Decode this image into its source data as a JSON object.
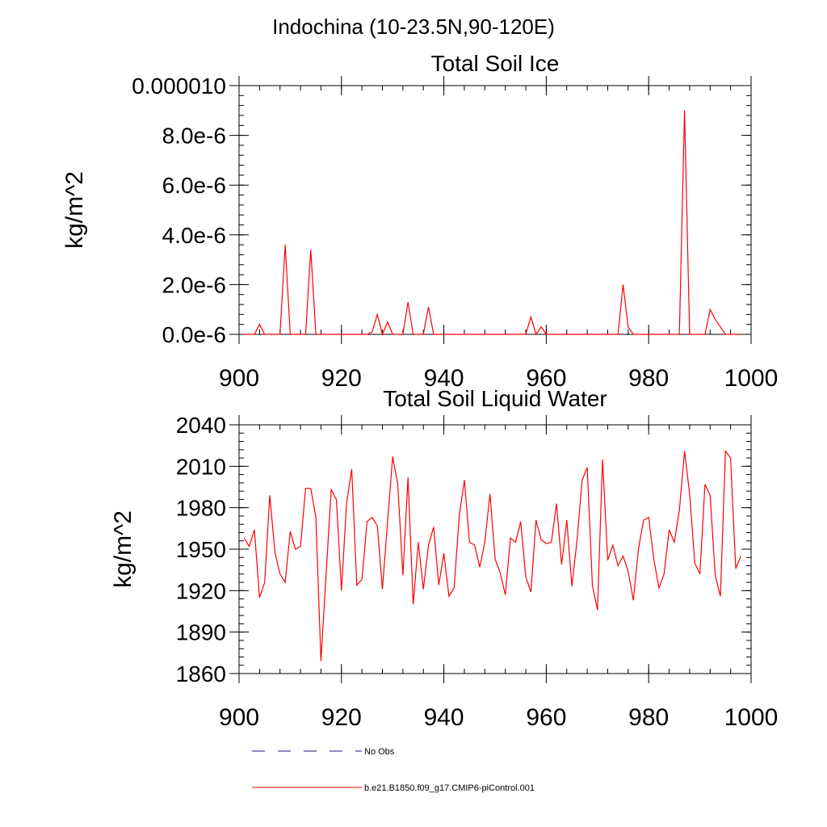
{
  "header": {
    "title": "Indochina (10-23.5N,90-120E)"
  },
  "legend": {
    "items": [
      {
        "label": "No Obs",
        "style": "dashed",
        "color": "#1a1a80"
      },
      {
        "label": "b.e21.B1850.f09_g17.CMIP6-piControl.001",
        "style": "solid",
        "color": "#ff0000"
      }
    ]
  },
  "chart_data": [
    {
      "type": "line",
      "title": "Total Soil Ice",
      "ylabel": "kg/m^2",
      "xlabel": "",
      "xlim": [
        900,
        1000
      ],
      "ylim": [
        0,
        1e-05
      ],
      "x_ticks": [
        900,
        920,
        940,
        960,
        980,
        1000
      ],
      "x_tick_labels": [
        "900",
        "920",
        "940",
        "960",
        "980",
        "1000"
      ],
      "y_ticks": [
        0,
        2e-06,
        4e-06,
        6e-06,
        8e-06,
        1e-05
      ],
      "y_tick_labels": [
        "0.0e-6",
        "2.0e-6",
        "4.0e-6",
        "6.0e-6",
        "8.0e-6",
        "0.000010"
      ],
      "grid": false,
      "series": [
        {
          "color": "#ff0000",
          "x": [
            901,
            902,
            903,
            904,
            905,
            906,
            907,
            908,
            909,
            910,
            911,
            912,
            913,
            914,
            915,
            916,
            917,
            918,
            919,
            920,
            921,
            922,
            923,
            924,
            925,
            926,
            927,
            928,
            929,
            930,
            931,
            932,
            933,
            934,
            935,
            936,
            937,
            938,
            939,
            940,
            941,
            942,
            943,
            944,
            945,
            946,
            947,
            948,
            949,
            950,
            951,
            952,
            953,
            954,
            955,
            956,
            957,
            958,
            959,
            960,
            961,
            962,
            963,
            964,
            965,
            966,
            967,
            968,
            969,
            970,
            971,
            972,
            973,
            974,
            975,
            976,
            977,
            978,
            979,
            980,
            981,
            982,
            983,
            984,
            985,
            986,
            987,
            988,
            989,
            990,
            991,
            992,
            993,
            994,
            995,
            996,
            997,
            998
          ],
          "values": [
            0,
            0,
            0,
            4e-07,
            0,
            0,
            0,
            0,
            3.6e-06,
            0,
            0,
            0,
            0,
            3.4e-06,
            0,
            0,
            0,
            0,
            0,
            0,
            0,
            0,
            0,
            0,
            0,
            1e-07,
            8e-07,
            0,
            5e-07,
            0,
            0,
            0,
            1.3e-06,
            0,
            0,
            0,
            1.1e-06,
            0,
            0,
            0,
            0,
            0,
            0,
            0,
            0,
            0,
            0,
            0,
            0,
            0,
            0,
            0,
            0,
            0,
            0,
            0,
            7e-07,
            0,
            3e-07,
            0,
            0,
            0,
            0,
            0,
            0,
            0,
            0,
            0,
            0,
            0,
            0,
            0,
            0,
            0,
            2e-06,
            3e-07,
            0,
            0,
            0,
            0,
            0,
            0,
            0,
            0,
            0,
            0,
            9e-06,
            0,
            0,
            0,
            0,
            1e-06,
            6e-07,
            3e-07,
            0,
            0,
            0,
            0
          ]
        }
      ]
    },
    {
      "type": "line",
      "title": "Total Soil Liquid Water",
      "ylabel": "kg/m^2",
      "xlabel": "",
      "xlim": [
        900,
        1000
      ],
      "ylim": [
        1860,
        2040
      ],
      "x_ticks": [
        900,
        920,
        940,
        960,
        980,
        1000
      ],
      "x_tick_labels": [
        "900",
        "920",
        "940",
        "960",
        "980",
        "1000"
      ],
      "y_ticks": [
        1860,
        1890,
        1920,
        1950,
        1980,
        2010,
        2040
      ],
      "y_tick_labels": [
        "1860",
        "1890",
        "1920",
        "1950",
        "1980",
        "2010",
        "2040"
      ],
      "grid": false,
      "series": [
        {
          "color": "#ff0000",
          "x": [
            901,
            902,
            903,
            904,
            905,
            906,
            907,
            908,
            909,
            910,
            911,
            912,
            913,
            914,
            915,
            916,
            917,
            918,
            919,
            920,
            921,
            922,
            923,
            924,
            925,
            926,
            927,
            928,
            929,
            930,
            931,
            932,
            933,
            934,
            935,
            936,
            937,
            938,
            939,
            940,
            941,
            942,
            943,
            944,
            945,
            946,
            947,
            948,
            949,
            950,
            951,
            952,
            953,
            954,
            955,
            956,
            957,
            958,
            959,
            960,
            961,
            962,
            963,
            964,
            965,
            966,
            967,
            968,
            969,
            970,
            971,
            972,
            973,
            974,
            975,
            976,
            977,
            978,
            979,
            980,
            981,
            982,
            983,
            984,
            985,
            986,
            987,
            988,
            989,
            990,
            991,
            992,
            993,
            994,
            995,
            996,
            997,
            998
          ],
          "values": [
            1958,
            1952,
            1964,
            1915,
            1926,
            1989,
            1948,
            1932,
            1926,
            1963,
            1950,
            1952,
            1994,
            1994,
            1973,
            1869,
            1932,
            1993,
            1986,
            1920,
            1983,
            2008,
            1924,
            1928,
            1970,
            1973,
            1967,
            1921,
            1970,
            2017,
            1997,
            1931,
            2002,
            1910,
            1955,
            1921,
            1953,
            1966,
            1924,
            1947,
            1916,
            1922,
            1974,
            2000,
            1955,
            1953,
            1937,
            1955,
            1990,
            1943,
            1933,
            1917,
            1958,
            1955,
            1970,
            1930,
            1919,
            1971,
            1957,
            1954,
            1955,
            1983,
            1939,
            1971,
            1923,
            1956,
            2000,
            2009,
            1924,
            1906,
            2015,
            1942,
            1953,
            1938,
            1945,
            1934,
            1913,
            1950,
            1971,
            1973,
            1943,
            1922,
            1932,
            1964,
            1955,
            1978,
            2021,
            1990,
            1940,
            1932,
            1997,
            1989,
            1931,
            1916,
            2021,
            2016,
            1936,
            1945
          ]
        }
      ]
    }
  ]
}
